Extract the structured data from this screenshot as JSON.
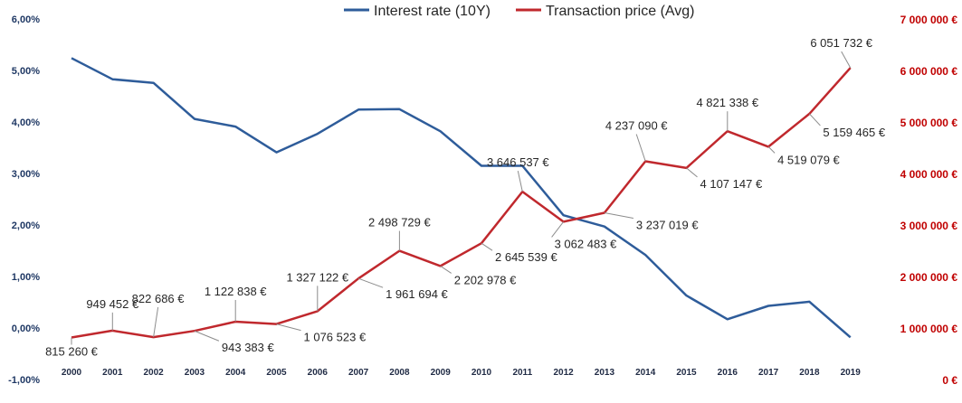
{
  "chart_data": {
    "type": "line",
    "title": "",
    "xlabel": "",
    "ylabel": "",
    "x": [
      "2000",
      "2001",
      "2002",
      "2003",
      "2004",
      "2005",
      "2006",
      "2007",
      "2008",
      "2009",
      "2010",
      "2011",
      "2012",
      "2013",
      "2014",
      "2015",
      "2016",
      "2017",
      "2018",
      "2019"
    ],
    "left_axis": {
      "ticks": [
        "-1,00%",
        "0,00%",
        "1,00%",
        "2,00%",
        "3,00%",
        "4,00%",
        "5,00%",
        "6,00%"
      ],
      "min": -1,
      "max": 6,
      "color": "#1f3864"
    },
    "right_axis": {
      "ticks": [
        "0 €",
        "1 000 000 €",
        "2 000 000 €",
        "3 000 000 €",
        "4 000 000 €",
        "5 000 000 €",
        "6 000 000 €",
        "7 000 000 €"
      ],
      "min": 0,
      "max": 7000000,
      "color": "#c00000"
    },
    "legend_position": "top-center",
    "grid": false,
    "series": [
      {
        "name": "Interest rate (10Y)",
        "axis": "left",
        "color": "#2e5c9a",
        "values": [
          5.24,
          4.83,
          4.76,
          4.06,
          3.91,
          3.41,
          3.77,
          4.24,
          4.25,
          3.82,
          3.15,
          3.15,
          2.19,
          1.97,
          1.42,
          0.63,
          0.17,
          0.43,
          0.51,
          -0.18
        ]
      },
      {
        "name": "Transaction price (Avg)",
        "axis": "right",
        "color": "#c0282d",
        "values": [
          815260,
          949452,
          822686,
          943383,
          1122838,
          1076523,
          1327122,
          1961694,
          2498729,
          2202978,
          2645539,
          3646537,
          3062483,
          3237019,
          4237090,
          4107147,
          4821338,
          4519079,
          5159465,
          6051732
        ],
        "labels": [
          "815 260 €",
          "949 452 €",
          "822 686 €",
          "943 383 €",
          "1 122 838 €",
          "1 076 523 €",
          "1 327 122 €",
          "1 961 694 €",
          "2 498 729 €",
          "2 202 978 €",
          "2 645 539 €",
          "3 646 537 €",
          "3 062 483 €",
          "3 237 019 €",
          "4 237 090 €",
          "4 107 147 €",
          "4 821 338 €",
          "4 519 079 €",
          "5 159 465 €",
          "6 051 732 €"
        ]
      }
    ]
  }
}
